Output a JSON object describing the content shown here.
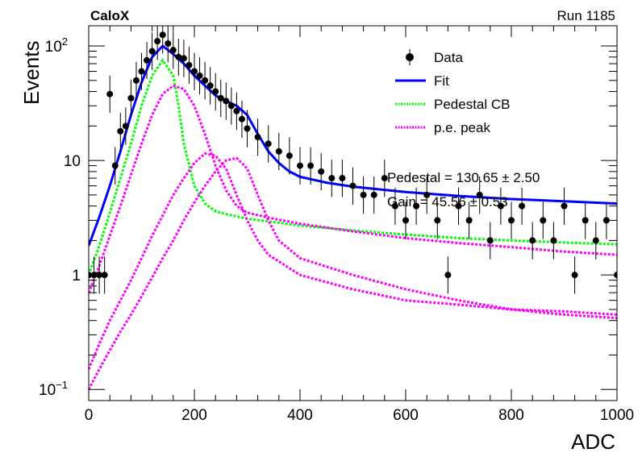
{
  "header": {
    "left_label": "CaloX",
    "right_label": "Run 1185"
  },
  "chart_data": {
    "type": "scatter",
    "title": "",
    "xlabel": "ADC",
    "ylabel": "Events",
    "xlim": [
      0,
      1000
    ],
    "ylim": [
      0.08,
      150
    ],
    "y_scale": "log",
    "x_ticks": [
      0,
      200,
      400,
      600,
      800,
      1000
    ],
    "y_ticks": [
      {
        "value": 0.1,
        "label": "10",
        "exp": "−1"
      },
      {
        "value": 1,
        "label": "1",
        "exp": ""
      },
      {
        "value": 10,
        "label": "10",
        "exp": ""
      },
      {
        "value": 100,
        "label": "10",
        "exp": "2"
      }
    ],
    "legend_position": "top-right",
    "legend": [
      {
        "label": "Data",
        "style": "marker",
        "color": "#000000"
      },
      {
        "label": "Fit",
        "style": "solid",
        "color": "#0000ff"
      },
      {
        "label": "Pedestal CB",
        "style": "dotted",
        "color": "#00ff00"
      },
      {
        "label": "p.e. peak",
        "style": "dotted",
        "color": "#ff00ff"
      }
    ],
    "fit_stats": [
      "Pedestal = 130.65 ± 2.50",
      "Gain = 45.56 ± 0.53"
    ],
    "series": [
      {
        "name": "Data",
        "kind": "points",
        "color": "#000000",
        "x": [
          0,
          10,
          20,
          30,
          40,
          50,
          60,
          70,
          80,
          90,
          100,
          110,
          120,
          130,
          140,
          150,
          160,
          170,
          180,
          190,
          200,
          210,
          220,
          230,
          240,
          250,
          260,
          270,
          280,
          290,
          300,
          320,
          340,
          360,
          380,
          400,
          420,
          440,
          460,
          480,
          500,
          520,
          540,
          560,
          580,
          600,
          620,
          640,
          660,
          680,
          700,
          720,
          740,
          760,
          780,
          800,
          820,
          840,
          860,
          880,
          900,
          920,
          940,
          960,
          980,
          1000
        ],
        "y": [
          1,
          1,
          1,
          1,
          38,
          9,
          18,
          20,
          35,
          50,
          60,
          75,
          90,
          110,
          125,
          105,
          92,
          80,
          78,
          68,
          60,
          55,
          50,
          45,
          40,
          35,
          33,
          30,
          27,
          23,
          19,
          16,
          14,
          12,
          11,
          9,
          9,
          8,
          7,
          7,
          6,
          5,
          5,
          7,
          4,
          3,
          4,
          5,
          3,
          1,
          4,
          3,
          5,
          2,
          4,
          3,
          4,
          2,
          3,
          2,
          4,
          1,
          3,
          2,
          3,
          1
        ],
        "y_err_rel": 0.45
      },
      {
        "name": "Fit",
        "kind": "line",
        "color": "#0000ff",
        "x": [
          0,
          20,
          40,
          60,
          80,
          100,
          120,
          140,
          160,
          180,
          200,
          220,
          240,
          260,
          280,
          300,
          320,
          340,
          360,
          380,
          400,
          450,
          500,
          600,
          700,
          800,
          900,
          1000
        ],
        "y": [
          1.8,
          3.2,
          6,
          12,
          25,
          48,
          80,
          100,
          85,
          70,
          55,
          45,
          37,
          33,
          30,
          25,
          17,
          12,
          9.5,
          8,
          7.2,
          6.4,
          5.9,
          5.3,
          4.9,
          4.6,
          4.4,
          4.2
        ]
      },
      {
        "name": "Pedestal CB",
        "kind": "line",
        "color": "#00ff00",
        "x": [
          0,
          20,
          40,
          60,
          80,
          100,
          120,
          140,
          160,
          170,
          180,
          200,
          220,
          240,
          260,
          280,
          300,
          350,
          400,
          500,
          600,
          700,
          800,
          900,
          1000
        ],
        "y": [
          1,
          1.8,
          3.5,
          7,
          14,
          30,
          55,
          75,
          55,
          30,
          14,
          6,
          4.2,
          3.6,
          3.4,
          3.25,
          3.1,
          2.9,
          2.7,
          2.45,
          2.25,
          2.1,
          2,
          1.92,
          1.85
        ]
      },
      {
        "name": "p.e. peak 1",
        "kind": "line",
        "color": "#ff00ff",
        "x": [
          0,
          20,
          40,
          60,
          80,
          100,
          120,
          140,
          160,
          180,
          200,
          220,
          240,
          260,
          280,
          300,
          350,
          400,
          500,
          600,
          700,
          800,
          900,
          1000
        ],
        "y": [
          0.7,
          1.2,
          2.2,
          4,
          7.5,
          14,
          25,
          38,
          45,
          42,
          30,
          17,
          9,
          5.5,
          4,
          3.5,
          3.1,
          2.8,
          2.4,
          2.1,
          1.9,
          1.75,
          1.6,
          1.5
        ]
      },
      {
        "name": "p.e. peak 2",
        "kind": "line",
        "color": "#ff00ff",
        "x": [
          0,
          20,
          40,
          60,
          80,
          100,
          120,
          140,
          160,
          180,
          200,
          220,
          240,
          260,
          280,
          300,
          320,
          340,
          400,
          500,
          600,
          700,
          800,
          900,
          1000
        ],
        "y": [
          0.15,
          0.25,
          0.4,
          0.6,
          0.9,
          1.4,
          2.2,
          3.3,
          5,
          7,
          9.5,
          11.5,
          11,
          8.5,
          5,
          3,
          2,
          1.5,
          1,
          0.75,
          0.6,
          0.55,
          0.5,
          0.48,
          0.45
        ]
      },
      {
        "name": "p.e. peak 3",
        "kind": "line",
        "color": "#ff00ff",
        "x": [
          0,
          20,
          40,
          60,
          80,
          100,
          120,
          140,
          160,
          180,
          200,
          220,
          240,
          260,
          280,
          300,
          320,
          340,
          360,
          400,
          500,
          600,
          700,
          800,
          900,
          1000
        ],
        "y": [
          0.1,
          0.15,
          0.22,
          0.32,
          0.45,
          0.65,
          0.95,
          1.4,
          2,
          3,
          4.3,
          6,
          8,
          10,
          10.5,
          8.5,
          5,
          3,
          2,
          1.4,
          1,
          0.75,
          0.6,
          0.5,
          0.45,
          0.42
        ]
      }
    ]
  }
}
